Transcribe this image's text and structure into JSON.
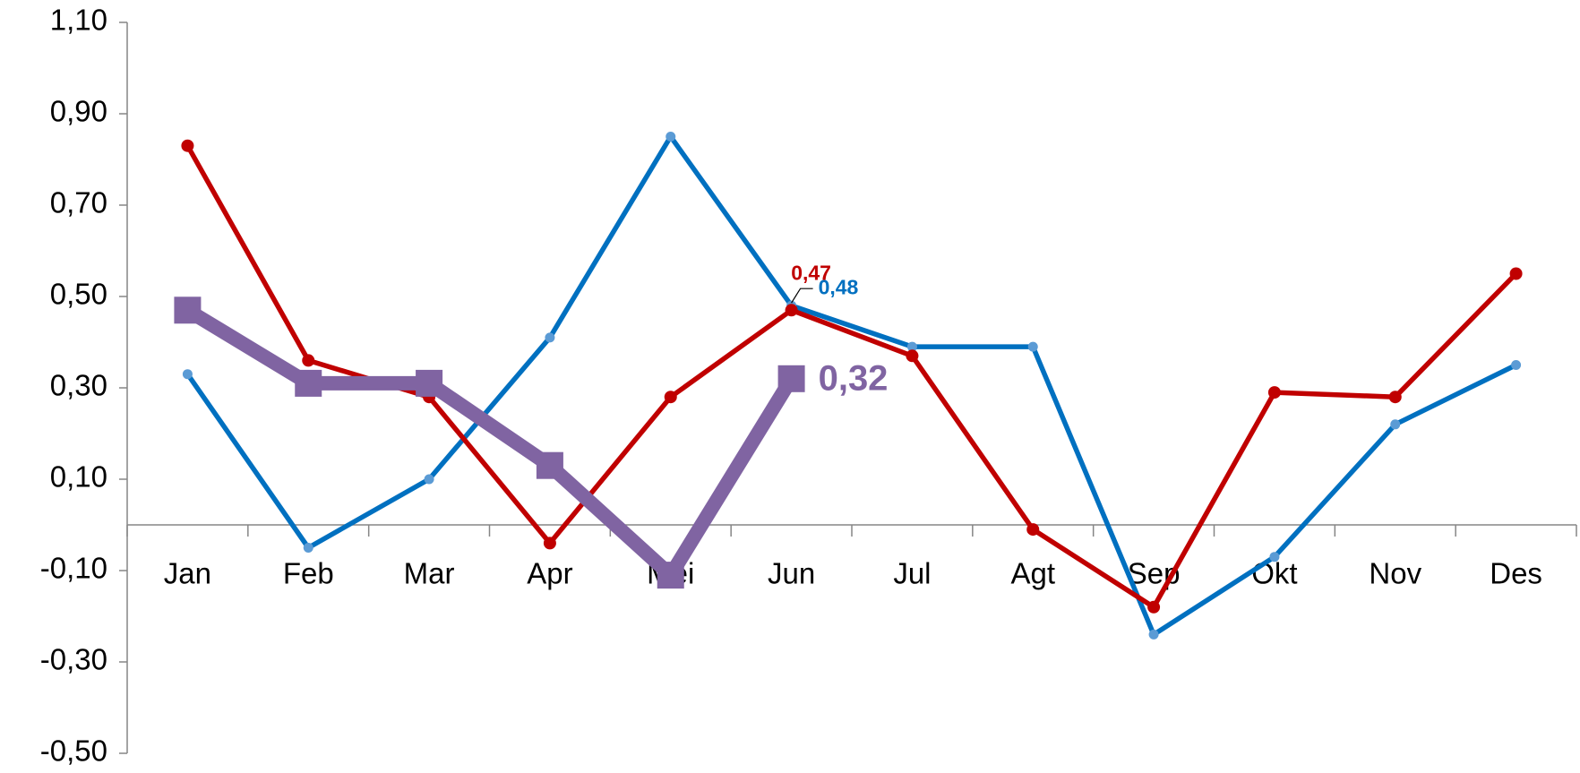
{
  "chart_data": {
    "type": "line",
    "categories": [
      "Jan",
      "Feb",
      "Mar",
      "Apr",
      "Mei",
      "Jun",
      "Jul",
      "Agt",
      "Sep",
      "Okt",
      "Nov",
      "Des"
    ],
    "series": [
      {
        "color": "#0070c0",
        "values": [
          0.33,
          -0.05,
          0.1,
          0.41,
          0.85,
          0.48,
          0.39,
          0.39,
          -0.24,
          -0.07,
          0.22,
          0.35
        ],
        "value_labels": [
          null,
          null,
          null,
          null,
          null,
          "0,48",
          null,
          null,
          null,
          null,
          null,
          null
        ]
      },
      {
        "color": "#c00000",
        "values": [
          0.83,
          0.36,
          0.28,
          -0.04,
          0.28,
          0.47,
          0.37,
          -0.01,
          -0.18,
          0.29,
          0.28,
          0.55
        ],
        "value_labels": [
          null,
          null,
          null,
          null,
          null,
          "0,47",
          null,
          null,
          null,
          null,
          null,
          null
        ]
      },
      {
        "color": "#8064a2",
        "values": [
          0.47,
          0.31,
          0.31,
          0.13,
          -0.11,
          0.32,
          null,
          null,
          null,
          null,
          null,
          null
        ],
        "value_labels": [
          null,
          null,
          null,
          null,
          null,
          "0,32",
          null,
          null,
          null,
          null,
          null,
          null
        ]
      }
    ],
    "ylim": [
      -0.5,
      1.1
    ],
    "yticks": [
      {
        "value": -0.5,
        "label": "-0,50"
      },
      {
        "value": -0.3,
        "label": "-0,30"
      },
      {
        "value": -0.1,
        "label": "-0,10"
      },
      {
        "value": 0.1,
        "label": "0,10"
      },
      {
        "value": 0.3,
        "label": "0,30"
      },
      {
        "value": 0.5,
        "label": "0,50"
      },
      {
        "value": 0.7,
        "label": "0,70"
      },
      {
        "value": 0.9,
        "label": "0,90"
      },
      {
        "value": 1.1,
        "label": "1,10"
      }
    ],
    "grid": false
  }
}
